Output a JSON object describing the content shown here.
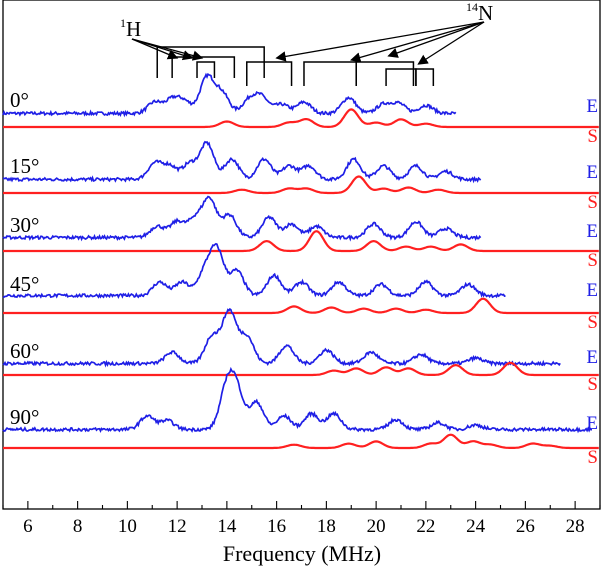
{
  "chart_data": {
    "type": "line",
    "xlabel": "Frequency (MHz)",
    "ylabel": "",
    "xlim": [
      5,
      29
    ],
    "xticks": [
      6,
      8,
      10,
      12,
      14,
      16,
      18,
      20,
      22,
      24,
      26,
      28
    ],
    "grid": false,
    "colors": {
      "experimental": "#1f1fe6",
      "simulated": "#ff2020"
    },
    "trace_labels": {
      "experimental": "E",
      "simulated": "S"
    },
    "annotations": {
      "h1": {
        "mass": "1",
        "symbol": "H",
        "arrow_targets_mhz": [
          12.0,
          12.6,
          13.0
        ]
      },
      "n14": {
        "mass": "14",
        "symbol": "N",
        "arrow_targets_mhz": [
          16.0,
          19.0,
          20.5,
          21.7
        ]
      },
      "h1_splittings_mhz": [
        [
          11.2,
          15.5
        ],
        [
          11.8,
          14.3
        ],
        [
          12.8,
          13.5
        ]
      ],
      "n14_splittings_mhz": [
        [
          14.8,
          16.6
        ],
        [
          17.1,
          19.2
        ],
        [
          19.2,
          21.5
        ],
        [
          20.4,
          21.6
        ],
        [
          21.6,
          22.3
        ]
      ]
    },
    "series": [
      {
        "angle": "0°",
        "experimental_peaks": [
          [
            11.1,
            0.25
          ],
          [
            11.8,
            0.3
          ],
          [
            12.3,
            0.25
          ],
          [
            13.2,
            0.8
          ],
          [
            13.8,
            0.45
          ],
          [
            14.9,
            0.3
          ],
          [
            15.4,
            0.35
          ],
          [
            16.2,
            0.2
          ],
          [
            17.1,
            0.25
          ],
          [
            18.9,
            0.35
          ],
          [
            20.3,
            0.2
          ],
          [
            20.9,
            0.22
          ],
          [
            22.0,
            0.18
          ]
        ],
        "experimental_baseline": 0.08,
        "experimental_extent": [
          5,
          23.2
        ],
        "simulated_peaks": [
          [
            14.0,
            0.25
          ],
          [
            16.5,
            0.2
          ],
          [
            17.2,
            0.35
          ],
          [
            19.0,
            0.8
          ],
          [
            20.0,
            0.2
          ],
          [
            21.0,
            0.35
          ],
          [
            22.0,
            0.15
          ]
        ]
      },
      {
        "angle": "15°",
        "experimental_peaks": [
          [
            11.1,
            0.35
          ],
          [
            11.7,
            0.3
          ],
          [
            12.5,
            0.35
          ],
          [
            13.2,
            0.8
          ],
          [
            14.2,
            0.45
          ],
          [
            15.5,
            0.45
          ],
          [
            16.5,
            0.3
          ],
          [
            17.3,
            0.3
          ],
          [
            19.1,
            0.45
          ],
          [
            20.3,
            0.3
          ],
          [
            21.6,
            0.3
          ],
          [
            22.8,
            0.18
          ]
        ],
        "experimental_baseline": 0.08,
        "experimental_extent": [
          5,
          24.2
        ],
        "simulated_peaks": [
          [
            14.6,
            0.15
          ],
          [
            16.5,
            0.2
          ],
          [
            17.2,
            0.2
          ],
          [
            19.3,
            0.75
          ],
          [
            20.3,
            0.2
          ],
          [
            21.3,
            0.25
          ],
          [
            22.5,
            0.15
          ]
        ]
      },
      {
        "angle": "30°",
        "experimental_peaks": [
          [
            11.2,
            0.25
          ],
          [
            12.0,
            0.35
          ],
          [
            12.7,
            0.4
          ],
          [
            13.3,
            0.85
          ],
          [
            14.1,
            0.5
          ],
          [
            15.7,
            0.45
          ],
          [
            16.6,
            0.3
          ],
          [
            17.6,
            0.25
          ],
          [
            19.9,
            0.3
          ],
          [
            21.6,
            0.35
          ],
          [
            22.8,
            0.2
          ]
        ],
        "experimental_baseline": 0.1,
        "experimental_extent": [
          5,
          24.2
        ],
        "simulated_peaks": [
          [
            15.6,
            0.45
          ],
          [
            17.6,
            0.9
          ],
          [
            19.9,
            0.45
          ],
          [
            21.2,
            0.2
          ],
          [
            22.2,
            0.2
          ],
          [
            23.4,
            0.3
          ]
        ]
      },
      {
        "angle": "45°",
        "experimental_peaks": [
          [
            11.3,
            0.3
          ],
          [
            12.2,
            0.3
          ],
          [
            13.1,
            0.5
          ],
          [
            13.6,
            1.0
          ],
          [
            14.4,
            0.55
          ],
          [
            15.9,
            0.45
          ],
          [
            17.0,
            0.3
          ],
          [
            18.5,
            0.3
          ],
          [
            20.2,
            0.25
          ],
          [
            22.0,
            0.3
          ],
          [
            23.7,
            0.25
          ]
        ],
        "experimental_baseline": 0.12,
        "experimental_extent": [
          5,
          25.2
        ],
        "simulated_peaks": [
          [
            16.7,
            0.3
          ],
          [
            18.2,
            0.25
          ],
          [
            19.5,
            0.2
          ],
          [
            20.8,
            0.2
          ],
          [
            22.0,
            0.15
          ],
          [
            24.3,
            0.65
          ]
        ]
      },
      {
        "angle": "60°",
        "experimental_peaks": [
          [
            11.8,
            0.25
          ],
          [
            13.4,
            0.6
          ],
          [
            14.1,
            1.15
          ],
          [
            14.8,
            0.6
          ],
          [
            16.4,
            0.4
          ],
          [
            18.0,
            0.3
          ],
          [
            19.8,
            0.25
          ],
          [
            21.8,
            0.2
          ],
          [
            24.0,
            0.12
          ]
        ],
        "experimental_baseline": 0.1,
        "experimental_extent": [
          5,
          27.4
        ],
        "simulated_peaks": [
          [
            18.3,
            0.2
          ],
          [
            19.2,
            0.3
          ],
          [
            20.4,
            0.35
          ],
          [
            21.3,
            0.3
          ],
          [
            23.2,
            0.45
          ],
          [
            25.4,
            0.55
          ]
        ]
      },
      {
        "angle": "90°",
        "experimental_peaks": [
          [
            10.8,
            0.3
          ],
          [
            11.6,
            0.2
          ],
          [
            14.0,
            0.9
          ],
          [
            14.4,
            0.8
          ],
          [
            15.2,
            0.6
          ],
          [
            16.3,
            0.3
          ],
          [
            17.4,
            0.35
          ],
          [
            18.3,
            0.35
          ],
          [
            20.8,
            0.22
          ],
          [
            22.5,
            0.15
          ],
          [
            24.0,
            0.1
          ]
        ],
        "experimental_baseline": 0.1,
        "experimental_extent": [
          5,
          28.7
        ],
        "simulated_peaks": [
          [
            16.7,
            0.15
          ],
          [
            18.9,
            0.2
          ],
          [
            20.0,
            0.3
          ],
          [
            22.2,
            0.2
          ],
          [
            23.0,
            0.6
          ],
          [
            23.9,
            0.3
          ],
          [
            24.6,
            0.15
          ],
          [
            26.3,
            0.2
          ],
          [
            27.0,
            0.1
          ]
        ]
      }
    ]
  }
}
